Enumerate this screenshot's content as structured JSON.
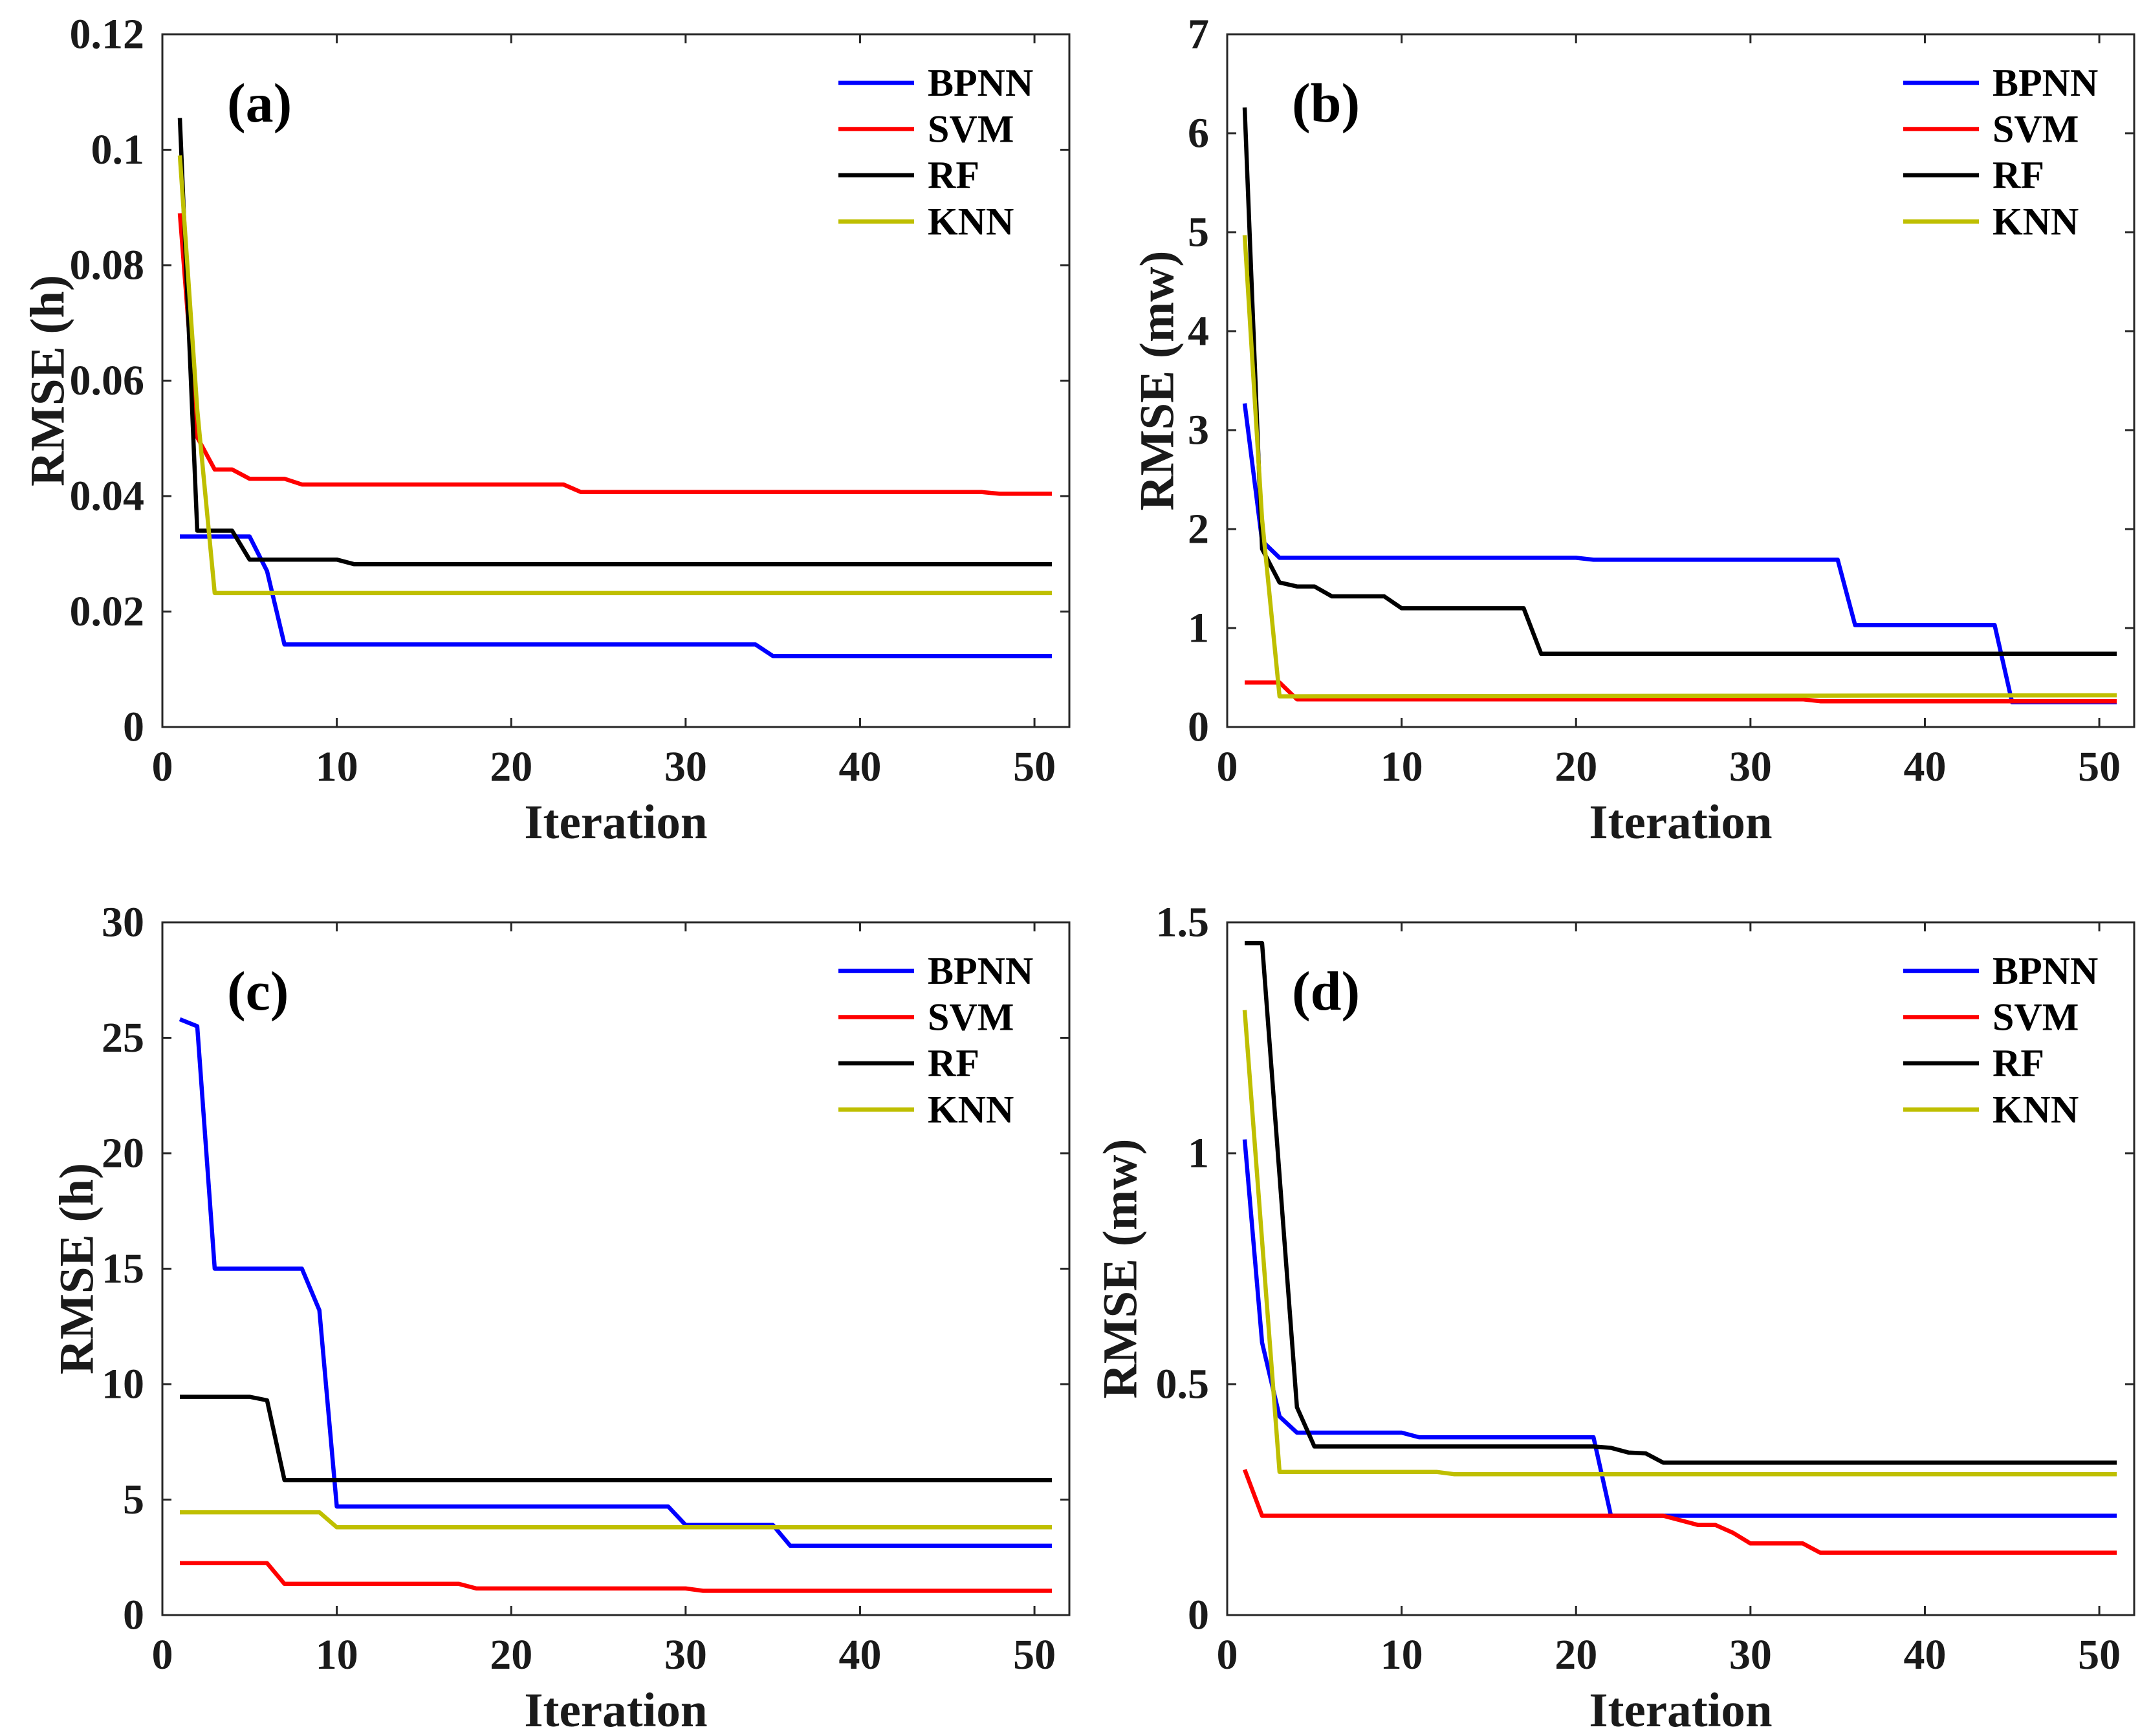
{
  "chart_data": [
    {
      "type": "line",
      "panel_label": "(a)",
      "xlabel": "Iteration",
      "ylabel": "RMSE (h)",
      "xlim": [
        0,
        52
      ],
      "ylim": [
        0,
        0.12
      ],
      "xticks": [
        0,
        10,
        20,
        30,
        40,
        50
      ],
      "xtick_labels": [
        "0",
        "10",
        "20",
        "30",
        "40",
        "50"
      ],
      "yticks": [
        0,
        0.02,
        0.04,
        0.06,
        0.08,
        0.1,
        0.12
      ],
      "ytick_labels": [
        "0",
        "0.02",
        "0.04",
        "0.06",
        "0.08",
        "0.1",
        "0.12"
      ],
      "grid": false,
      "legend_position": "top-right",
      "series": [
        {
          "name": "BPNN",
          "color": "#0000FF",
          "x": [
            1,
            5,
            6,
            7,
            34,
            35,
            51
          ],
          "y": [
            0.033,
            0.033,
            0.027,
            0.0143,
            0.0143,
            0.0123,
            0.0123
          ]
        },
        {
          "name": "SVM",
          "color": "#FF0000",
          "x": [
            1,
            2,
            3,
            4,
            5,
            7,
            8,
            23,
            24,
            47,
            48,
            51
          ],
          "y": [
            0.089,
            0.0502,
            0.0446,
            0.0446,
            0.043,
            0.043,
            0.042,
            0.042,
            0.0407,
            0.0407,
            0.0404,
            0.0404
          ]
        },
        {
          "name": "RF",
          "color": "#000000",
          "x": [
            1,
            2,
            4,
            5,
            10,
            11,
            51
          ],
          "y": [
            0.1055,
            0.034,
            0.034,
            0.029,
            0.029,
            0.0282,
            0.0282
          ]
        },
        {
          "name": "KNN",
          "color": "#BFBF00",
          "x": [
            1,
            2,
            3,
            51
          ],
          "y": [
            0.099,
            0.055,
            0.0232,
            0.0232
          ]
        }
      ]
    },
    {
      "type": "line",
      "panel_label": "(b)",
      "xlabel": "Iteration",
      "ylabel": "RMSE (mw)",
      "xlim": [
        0,
        52
      ],
      "ylim": [
        0,
        7
      ],
      "xticks": [
        0,
        10,
        20,
        30,
        40,
        50
      ],
      "xtick_labels": [
        "0",
        "10",
        "20",
        "30",
        "40",
        "50"
      ],
      "yticks": [
        0,
        1,
        2,
        3,
        4,
        5,
        6,
        7
      ],
      "ytick_labels": [
        "0",
        "1",
        "2",
        "3",
        "4",
        "5",
        "6",
        "7"
      ],
      "grid": false,
      "legend_position": "top-right",
      "series": [
        {
          "name": "BPNN",
          "color": "#0000FF",
          "x": [
            1,
            2,
            3,
            20,
            21,
            35,
            36,
            44,
            45,
            51
          ],
          "y": [
            3.27,
            1.88,
            1.71,
            1.71,
            1.69,
            1.69,
            1.03,
            1.03,
            0.25,
            0.25
          ]
        },
        {
          "name": "SVM",
          "color": "#FF0000",
          "x": [
            1,
            3,
            4,
            33,
            34,
            51
          ],
          "y": [
            0.45,
            0.45,
            0.28,
            0.28,
            0.26,
            0.26
          ]
        },
        {
          "name": "RF",
          "color": "#000000",
          "x": [
            1,
            2,
            3,
            4,
            5,
            6,
            9,
            10,
            17,
            18,
            51
          ],
          "y": [
            6.26,
            1.8,
            1.46,
            1.42,
            1.42,
            1.32,
            1.32,
            1.2,
            1.2,
            0.74,
            0.74
          ]
        },
        {
          "name": "KNN",
          "color": "#BFBF00",
          "x": [
            1,
            2,
            3,
            51
          ],
          "y": [
            4.97,
            2.1,
            0.31,
            0.32
          ]
        }
      ]
    },
    {
      "type": "line",
      "panel_label": "(c)",
      "xlabel": "Iteration",
      "ylabel": "RMSE (h)",
      "xlim": [
        0,
        52
      ],
      "ylim": [
        0,
        30
      ],
      "xticks": [
        0,
        10,
        20,
        30,
        40,
        50
      ],
      "xtick_labels": [
        "0",
        "10",
        "20",
        "30",
        "40",
        "50"
      ],
      "yticks": [
        0,
        5,
        10,
        15,
        20,
        25,
        30
      ],
      "ytick_labels": [
        "0",
        "5",
        "10",
        "15",
        "20",
        "25",
        "30"
      ],
      "grid": false,
      "legend_position": "top-right",
      "series": [
        {
          "name": "BPNN",
          "color": "#0000FF",
          "x": [
            1,
            2,
            3,
            8,
            9,
            10,
            29,
            30,
            35,
            36,
            51
          ],
          "y": [
            25.8,
            25.5,
            15.0,
            15.0,
            13.2,
            4.7,
            4.7,
            3.9,
            3.9,
            3.0,
            3.0
          ]
        },
        {
          "name": "SVM",
          "color": "#FF0000",
          "x": [
            1,
            6,
            7,
            17,
            18,
            30,
            31,
            51
          ],
          "y": [
            2.25,
            2.25,
            1.35,
            1.35,
            1.15,
            1.15,
            1.05,
            1.05
          ]
        },
        {
          "name": "RF",
          "color": "#000000",
          "x": [
            1,
            5,
            6,
            7,
            51
          ],
          "y": [
            9.45,
            9.45,
            9.3,
            5.85,
            5.85
          ]
        },
        {
          "name": "KNN",
          "color": "#BFBF00",
          "x": [
            1,
            9,
            10,
            51
          ],
          "y": [
            4.45,
            4.45,
            3.8,
            3.8
          ]
        }
      ]
    },
    {
      "type": "line",
      "panel_label": "(d)",
      "xlabel": "Iteration",
      "ylabel": "RMSE (mw)",
      "xlim": [
        0,
        52
      ],
      "ylim": [
        0,
        1.5
      ],
      "xticks": [
        0,
        10,
        20,
        30,
        40,
        50
      ],
      "xtick_labels": [
        "0",
        "10",
        "20",
        "30",
        "40",
        "50"
      ],
      "yticks": [
        0,
        0.5,
        1,
        1.5
      ],
      "ytick_labels": [
        "0",
        "0.5",
        "1",
        "1.5"
      ],
      "grid": false,
      "legend_position": "top-right",
      "series": [
        {
          "name": "BPNN",
          "color": "#0000FF",
          "x": [
            1,
            2,
            3,
            4,
            10,
            11,
            21,
            22,
            51
          ],
          "y": [
            1.03,
            0.59,
            0.43,
            0.395,
            0.395,
            0.385,
            0.385,
            0.215,
            0.215
          ]
        },
        {
          "name": "SVM",
          "color": "#FF0000",
          "x": [
            1,
            2,
            25,
            26,
            27,
            28,
            29,
            30,
            33,
            34,
            51
          ],
          "y": [
            0.315,
            0.215,
            0.215,
            0.205,
            0.195,
            0.195,
            0.178,
            0.155,
            0.155,
            0.135,
            0.135
          ]
        },
        {
          "name": "RF",
          "color": "#000000",
          "x": [
            1,
            2,
            4,
            5,
            21,
            22,
            23,
            24,
            25,
            51
          ],
          "y": [
            1.455,
            1.455,
            0.45,
            0.365,
            0.365,
            0.362,
            0.352,
            0.35,
            0.33,
            0.33
          ]
        },
        {
          "name": "KNN",
          "color": "#BFBF00",
          "x": [
            1,
            3,
            12,
            13,
            51
          ],
          "y": [
            1.31,
            0.31,
            0.31,
            0.305,
            0.305
          ]
        }
      ]
    }
  ]
}
